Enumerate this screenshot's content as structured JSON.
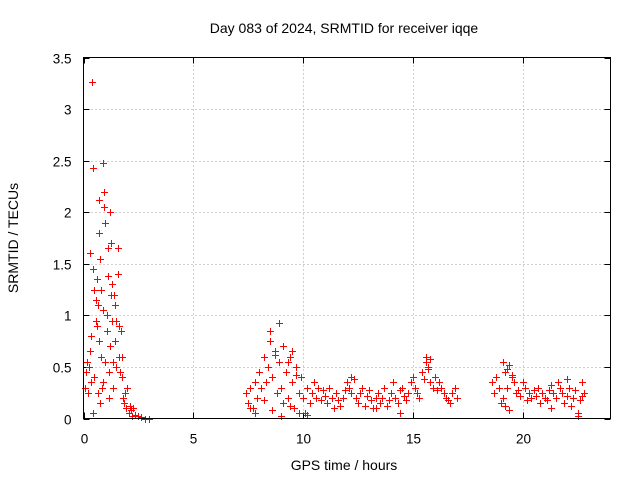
{
  "colors": {
    "series": "#ff0000",
    "grid": "#a0a0a0",
    "axis": "#000000",
    "background": "#ffffff"
  },
  "chart_data": {
    "type": "scatter",
    "title": "Day 083 of 2024, SRMTID for receiver iqqe",
    "xlabel": "GPS time / hours",
    "ylabel": "SRMTID / TECUs",
    "xlim": [
      0,
      24
    ],
    "ylim": [
      0,
      3.5
    ],
    "xticks": [
      0,
      5,
      10,
      15,
      20
    ],
    "xtick_labels": [
      "0",
      "5",
      "10",
      "15",
      "20"
    ],
    "yticks": [
      0,
      0.5,
      1,
      1.5,
      2,
      2.5,
      3,
      3.5
    ],
    "ytick_labels": [
      "0",
      "0.5",
      "1",
      "1.5",
      "2",
      "2.5",
      "3",
      "3.5"
    ],
    "grid": true,
    "marker": "+",
    "series": [
      {
        "name": "SRMTID",
        "color": "#ff0000",
        "x": [
          0.05,
          0.1,
          0.15,
          0.2,
          0.25,
          0.3,
          0.35,
          0.4,
          0.45,
          0.5,
          0.55,
          0.6,
          0.65,
          0.7,
          0.75,
          0.8,
          0.85,
          0.9,
          0.95,
          1.0,
          1.05,
          1.1,
          1.15,
          1.2,
          1.25,
          1.3,
          1.35,
          1.4,
          1.45,
          1.5,
          1.55,
          1.6,
          1.65,
          1.7,
          1.75,
          1.8,
          1.85,
          1.9,
          1.95,
          2.0,
          2.05,
          2.1,
          2.15,
          2.2,
          0.42,
          0.9,
          0.95,
          0.45,
          0.72,
          1.1,
          1.0,
          0.6,
          0.8,
          1.2,
          0.3,
          0.5,
          0.7,
          0.9,
          1.3,
          1.5,
          0.55,
          0.65,
          1.05,
          1.25,
          1.45,
          1.6,
          0.35,
          0.75,
          1.15,
          1.35,
          1.55,
          1.75,
          2.25,
          2.35,
          2.5,
          2.6,
          2.8,
          3.0,
          7.4,
          7.5,
          7.6,
          7.7,
          7.8,
          7.9,
          8.0,
          8.1,
          8.2,
          8.3,
          8.4,
          8.5,
          8.6,
          8.7,
          8.8,
          8.9,
          9.0,
          9.1,
          9.2,
          9.3,
          9.4,
          9.5,
          9.6,
          9.7,
          9.8,
          9.9,
          10.0,
          10.1,
          10.2,
          10.3,
          10.4,
          10.5,
          10.6,
          10.7,
          10.8,
          10.9,
          11.0,
          11.1,
          11.2,
          11.3,
          11.4,
          11.5,
          11.6,
          11.7,
          11.8,
          11.9,
          12.0,
          12.1,
          12.2,
          12.3,
          12.4,
          12.5,
          12.6,
          12.7,
          12.8,
          12.9,
          13.0,
          13.1,
          13.2,
          13.3,
          13.4,
          13.5,
          13.6,
          13.7,
          13.8,
          13.9,
          14.0,
          14.1,
          14.2,
          14.3,
          14.4,
          14.5,
          14.6,
          14.7,
          14.8,
          14.9,
          15.0,
          15.1,
          15.2,
          15.3,
          15.4,
          15.5,
          15.6,
          15.7,
          15.8,
          15.9,
          16.0,
          16.1,
          16.2,
          16.3,
          16.4,
          16.5,
          16.6,
          16.7,
          16.8,
          16.9,
          17.0,
          8.5,
          8.7,
          8.9,
          9.1,
          9.3,
          9.5,
          9.7,
          7.6,
          7.8,
          8.2,
          8.6,
          9.0,
          9.4,
          9.8,
          10.2,
          12.2,
          13.3,
          14.4,
          15.6,
          15.7,
          15.8,
          18.6,
          18.7,
          18.8,
          18.9,
          19.0,
          19.1,
          19.2,
          19.3,
          19.4,
          19.5,
          19.6,
          19.7,
          19.8,
          19.9,
          20.0,
          20.1,
          20.2,
          20.3,
          20.4,
          20.5,
          20.6,
          20.7,
          20.8,
          20.9,
          21.0,
          21.1,
          21.2,
          21.3,
          21.4,
          21.5,
          21.6,
          21.7,
          21.8,
          21.9,
          22.0,
          22.1,
          22.2,
          22.3,
          22.4,
          22.5,
          22.6,
          22.7,
          22.8,
          19.1,
          19.3,
          19.5,
          19.2,
          19.4,
          21.3,
          22.0,
          22.5,
          22.7
        ],
        "y": [
          0.3,
          0.45,
          0.55,
          0.25,
          0.5,
          1.6,
          0.8,
          3.26,
          2.43,
          1.25,
          0.95,
          1.35,
          1.1,
          2.12,
          1.55,
          0.6,
          0.3,
          2.48,
          2.05,
          1.9,
          1.0,
          1.38,
          0.2,
          2.0,
          1.7,
          1.3,
          0.55,
          1.2,
          1.1,
          0.95,
          1.65,
          0.6,
          0.45,
          0.85,
          0.4,
          0.2,
          0.15,
          0.25,
          0.1,
          0.3,
          0.05,
          0.12,
          0.08,
          0.02,
          0.05,
          0.35,
          2.2,
          1.45,
          0.75,
          1.65,
          0.55,
          0.9,
          1.25,
          0.7,
          0.65,
          0.4,
          1.8,
          1.05,
          0.95,
          0.5,
          1.15,
          0.25,
          0.85,
          1.2,
          0.75,
          0.9,
          0.35,
          0.15,
          0.45,
          0.3,
          1.4,
          0.6,
          0.1,
          0.03,
          0.02,
          0.01,
          0.0,
          0.0,
          0.25,
          0.15,
          0.3,
          0.1,
          0.35,
          0.2,
          0.45,
          0.3,
          0.6,
          0.35,
          0.5,
          0.75,
          0.4,
          0.65,
          0.25,
          0.55,
          0.3,
          0.15,
          0.45,
          0.2,
          0.6,
          0.35,
          0.1,
          0.5,
          0.25,
          0.4,
          0.2,
          0.05,
          0.3,
          0.15,
          0.25,
          0.35,
          0.2,
          0.3,
          0.18,
          0.28,
          0.22,
          0.15,
          0.3,
          0.2,
          0.1,
          0.25,
          0.18,
          0.12,
          0.2,
          0.28,
          0.35,
          0.3,
          0.25,
          0.38,
          0.2,
          0.15,
          0.25,
          0.3,
          0.12,
          0.22,
          0.28,
          0.18,
          0.1,
          0.2,
          0.25,
          0.15,
          0.2,
          0.3,
          0.12,
          0.18,
          0.25,
          0.35,
          0.2,
          0.15,
          0.28,
          0.3,
          0.22,
          0.18,
          0.25,
          0.35,
          0.4,
          0.3,
          0.25,
          0.2,
          0.45,
          0.38,
          0.55,
          0.48,
          0.35,
          0.3,
          0.4,
          0.28,
          0.35,
          0.3,
          0.25,
          0.2,
          0.18,
          0.15,
          0.25,
          0.3,
          0.2,
          0.85,
          0.62,
          0.93,
          0.7,
          0.55,
          0.65,
          0.42,
          0.1,
          0.05,
          0.18,
          0.08,
          0.02,
          0.12,
          0.05,
          0.03,
          0.4,
          0.1,
          0.05,
          0.6,
          0.5,
          0.58,
          0.35,
          0.25,
          0.4,
          0.3,
          0.15,
          0.2,
          0.45,
          0.3,
          0.52,
          0.4,
          0.35,
          0.25,
          0.28,
          0.22,
          0.35,
          0.3,
          0.18,
          0.25,
          0.2,
          0.28,
          0.22,
          0.3,
          0.15,
          0.25,
          0.2,
          0.18,
          0.28,
          0.32,
          0.25,
          0.2,
          0.35,
          0.3,
          0.25,
          0.15,
          0.38,
          0.3,
          0.12,
          0.2,
          0.28,
          0.05,
          0.18,
          0.22,
          0.25,
          0.55,
          0.48,
          0.42,
          0.12,
          0.08,
          0.1,
          0.22,
          0.02,
          0.35
        ]
      }
    ]
  }
}
